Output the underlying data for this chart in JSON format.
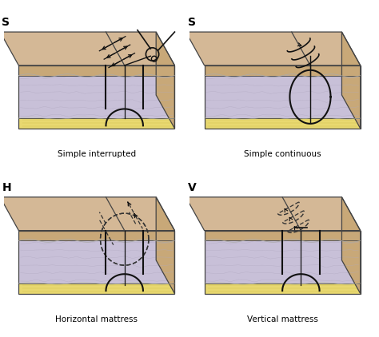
{
  "captions": {
    "A": "Simple interrupted",
    "B": "Simple continuous",
    "C": "Horizontal mattress",
    "D": "Vertical mattress"
  },
  "colors": {
    "bg": "#ffffff",
    "skin": "#d4b896",
    "skin_side": "#c8a878",
    "dermis": "#ddd8e8",
    "dermis_deep": "#c8c0d8",
    "fat": "#e8d870",
    "fat_side": "#d4c060",
    "outline": "#444444",
    "suture": "#111111",
    "suture_dash": "#333333",
    "top_edge": "#b09878"
  },
  "figsize": [
    4.74,
    4.22
  ],
  "dpi": 100
}
